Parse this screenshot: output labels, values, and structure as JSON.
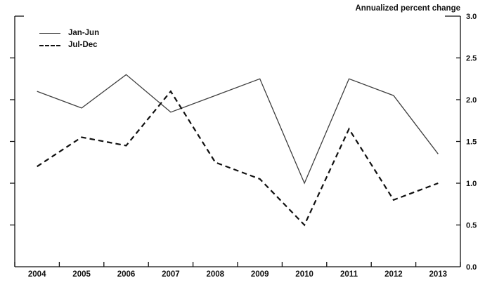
{
  "chart_data": {
    "type": "line",
    "title": "Annualized percent change",
    "categories": [
      "2004",
      "2005",
      "2006",
      "2007",
      "2008",
      "2009",
      "2010",
      "2011",
      "2012",
      "2013"
    ],
    "series": [
      {
        "name": "Jan-Jun",
        "line_style": "solid",
        "values": [
          2.1,
          1.9,
          2.3,
          1.85,
          2.05,
          2.25,
          1.0,
          2.25,
          2.05,
          1.35
        ]
      },
      {
        "name": "Jul-Dec",
        "line_style": "dashed",
        "values": [
          1.2,
          1.55,
          1.45,
          2.1,
          1.25,
          1.05,
          0.5,
          1.65,
          0.8,
          1.0
        ]
      }
    ],
    "xlabel": "",
    "ylabel": "Annualized percent change",
    "ylim": [
      0,
      3.0
    ],
    "yticks": [
      "0.0",
      "0.5",
      "1.0",
      "1.5",
      "2.0",
      "2.5",
      "3.0"
    ],
    "y_axis_side": "right",
    "grid": false,
    "legend_position": "top-left"
  },
  "colors": {
    "solid_line": "#3f3f3f",
    "dashed_line": "#101010",
    "axis": "#111111",
    "text": "#111111",
    "background": "#ffffff"
  }
}
